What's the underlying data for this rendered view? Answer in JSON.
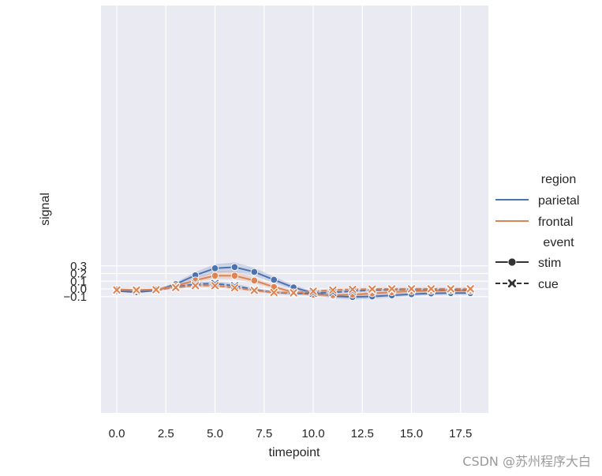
{
  "chart_data": {
    "type": "line",
    "xlabel": "timepoint",
    "ylabel": "signal",
    "xlim": [
      -0.9,
      18.9
    ],
    "ylim": [
      -0.16,
      0.37
    ],
    "xticks": [
      0.0,
      2.5,
      5.0,
      7.5,
      10.0,
      12.5,
      15.0,
      17.5
    ],
    "xtick_labels": [
      "0.0",
      "2.5",
      "5.0",
      "7.5",
      "10.0",
      "12.5",
      "15.0",
      "17.5"
    ],
    "yticks": [
      -0.1,
      0.0,
      0.1,
      0.2,
      0.3
    ],
    "ytick_labels": [
      "−0.1",
      "0.0",
      "0.1",
      "0.2",
      "0.3"
    ],
    "grid": true,
    "legend_position": "right",
    "legend": {
      "hue_title": "region",
      "style_title": "event",
      "hue_entries": [
        {
          "label": "parietal",
          "color": "#4c72b0"
        },
        {
          "label": "frontal",
          "color": "#dd8452"
        }
      ],
      "style_entries": [
        {
          "label": "stim",
          "marker": "circle",
          "dash": "solid"
        },
        {
          "label": "cue",
          "marker": "x",
          "dash": "dashed"
        }
      ]
    },
    "x": [
      0,
      1,
      2,
      3,
      4,
      5,
      6,
      7,
      8,
      9,
      10,
      11,
      12,
      13,
      14,
      15,
      16,
      17,
      18
    ],
    "series": [
      {
        "region": "parietal",
        "event": "stim",
        "color": "#4c72b0",
        "values": [
          -0.027,
          -0.042,
          -0.02,
          0.061,
          0.177,
          0.268,
          0.283,
          0.221,
          0.119,
          0.019,
          -0.052,
          -0.093,
          -0.105,
          -0.098,
          -0.084,
          -0.068,
          -0.058,
          -0.054,
          -0.054
        ],
        "lower": [
          -0.037,
          -0.057,
          -0.033,
          0.04,
          0.135,
          0.21,
          0.222,
          0.17,
          0.078,
          -0.01,
          -0.075,
          -0.12,
          -0.138,
          -0.128,
          -0.11,
          -0.092,
          -0.08,
          -0.075,
          -0.075
        ],
        "upper": [
          -0.016,
          -0.027,
          -0.006,
          0.083,
          0.22,
          0.32,
          0.345,
          0.275,
          0.16,
          0.048,
          -0.03,
          -0.067,
          -0.072,
          -0.067,
          -0.058,
          -0.045,
          -0.036,
          -0.033,
          -0.033
        ]
      },
      {
        "region": "frontal",
        "event": "stim",
        "color": "#dd8452",
        "values": [
          -0.007,
          -0.016,
          -0.007,
          0.037,
          0.112,
          0.172,
          0.172,
          0.109,
          0.025,
          -0.043,
          -0.075,
          -0.081,
          -0.074,
          -0.058,
          -0.042,
          -0.03,
          -0.024,
          -0.022,
          -0.024
        ],
        "lower": [
          -0.018,
          -0.028,
          -0.018,
          0.02,
          0.085,
          0.13,
          0.128,
          0.075,
          0.0,
          -0.065,
          -0.1,
          -0.105,
          -0.098,
          -0.082,
          -0.065,
          -0.052,
          -0.044,
          -0.04,
          -0.042
        ],
        "upper": [
          0.01,
          -0.004,
          0.004,
          0.055,
          0.14,
          0.23,
          0.235,
          0.145,
          0.05,
          -0.02,
          -0.055,
          -0.06,
          -0.052,
          -0.035,
          -0.02,
          -0.008,
          -0.004,
          -0.003,
          -0.006
        ]
      },
      {
        "region": "parietal",
        "event": "cue",
        "color": "#4c72b0",
        "values": [
          -0.024,
          -0.03,
          -0.019,
          0.025,
          0.062,
          0.07,
          0.04,
          -0.009,
          -0.045,
          -0.06,
          -0.055,
          -0.044,
          -0.029,
          -0.017,
          -0.01,
          -0.006,
          -0.008,
          -0.01,
          -0.012
        ],
        "lower": [
          -0.034,
          -0.04,
          -0.028,
          0.005,
          0.035,
          0.038,
          0.012,
          -0.03,
          -0.065,
          -0.08,
          -0.075,
          -0.062,
          -0.045,
          -0.032,
          -0.024,
          -0.019,
          -0.02,
          -0.022,
          -0.025
        ],
        "upper": [
          -0.014,
          -0.02,
          -0.009,
          0.045,
          0.09,
          0.102,
          0.07,
          0.012,
          -0.025,
          -0.04,
          -0.035,
          -0.025,
          -0.013,
          -0.002,
          0.004,
          0.007,
          0.004,
          0.002,
          0.0
        ]
      },
      {
        "region": "frontal",
        "event": "cue",
        "color": "#dd8452",
        "values": [
          -0.014,
          -0.015,
          -0.01,
          0.018,
          0.043,
          0.043,
          0.015,
          -0.02,
          -0.046,
          -0.05,
          -0.031,
          -0.015,
          -0.006,
          -0.002,
          0.001,
          0.001,
          0.001,
          0.001,
          0.002
        ],
        "lower": [
          -0.024,
          -0.024,
          -0.018,
          0.005,
          0.025,
          0.022,
          -0.005,
          -0.04,
          -0.065,
          -0.07,
          -0.052,
          -0.035,
          -0.024,
          -0.018,
          -0.014,
          -0.013,
          -0.014,
          -0.015,
          -0.015
        ],
        "upper": [
          -0.004,
          -0.006,
          -0.002,
          0.032,
          0.06,
          0.062,
          0.035,
          0.0,
          -0.028,
          -0.03,
          -0.012,
          0.004,
          0.012,
          0.014,
          0.016,
          0.015,
          0.016,
          0.017,
          0.018
        ]
      }
    ]
  },
  "watermark": "CSDN @苏州程序大白"
}
